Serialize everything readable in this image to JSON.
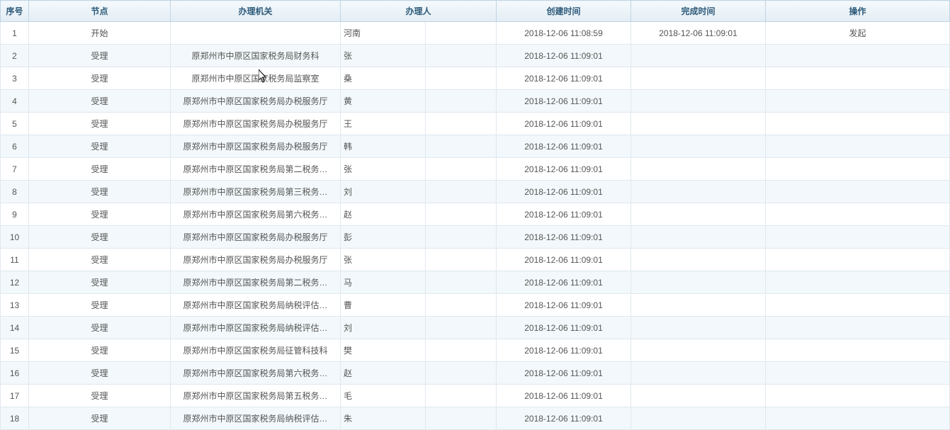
{
  "table": {
    "headers": {
      "seq": "序号",
      "node": "节点",
      "agency": "办理机关",
      "handler": "办理人",
      "created": "创建时间",
      "completed": "完成时间",
      "action": "操作"
    },
    "rows": [
      {
        "seq": "1",
        "node": "开始",
        "agency": "",
        "handler": "河南",
        "created": "2018-12-06 11:08:59",
        "completed": "2018-12-06 11:09:01",
        "action": "发起"
      },
      {
        "seq": "2",
        "node": "受理",
        "agency": "原郑州市中原区国家税务局财务科",
        "handler": "张",
        "created": "2018-12-06 11:09:01",
        "completed": "",
        "action": ""
      },
      {
        "seq": "3",
        "node": "受理",
        "agency": "原郑州市中原区国家税务局监察室",
        "handler": "桑",
        "created": "2018-12-06 11:09:01",
        "completed": "",
        "action": ""
      },
      {
        "seq": "4",
        "node": "受理",
        "agency": "原郑州市中原区国家税务局办税服务厅",
        "handler": "黄",
        "created": "2018-12-06 11:09:01",
        "completed": "",
        "action": ""
      },
      {
        "seq": "5",
        "node": "受理",
        "agency": "原郑州市中原区国家税务局办税服务厅",
        "handler": "王",
        "created": "2018-12-06 11:09:01",
        "completed": "",
        "action": ""
      },
      {
        "seq": "6",
        "node": "受理",
        "agency": "原郑州市中原区国家税务局办税服务厅",
        "handler": "韩",
        "created": "2018-12-06 11:09:01",
        "completed": "",
        "action": ""
      },
      {
        "seq": "7",
        "node": "受理",
        "agency": "原郑州市中原区国家税务局第二税务…",
        "handler": "张",
        "created": "2018-12-06 11:09:01",
        "completed": "",
        "action": ""
      },
      {
        "seq": "8",
        "node": "受理",
        "agency": "原郑州市中原区国家税务局第三税务…",
        "handler": "刘",
        "created": "2018-12-06 11:09:01",
        "completed": "",
        "action": ""
      },
      {
        "seq": "9",
        "node": "受理",
        "agency": "原郑州市中原区国家税务局第六税务…",
        "handler": "赵",
        "created": "2018-12-06 11:09:01",
        "completed": "",
        "action": ""
      },
      {
        "seq": "10",
        "node": "受理",
        "agency": "原郑州市中原区国家税务局办税服务厅",
        "handler": "彭",
        "created": "2018-12-06 11:09:01",
        "completed": "",
        "action": ""
      },
      {
        "seq": "11",
        "node": "受理",
        "agency": "原郑州市中原区国家税务局办税服务厅",
        "handler": "张",
        "created": "2018-12-06 11:09:01",
        "completed": "",
        "action": ""
      },
      {
        "seq": "12",
        "node": "受理",
        "agency": "原郑州市中原区国家税务局第二税务…",
        "handler": "马",
        "created": "2018-12-06 11:09:01",
        "completed": "",
        "action": ""
      },
      {
        "seq": "13",
        "node": "受理",
        "agency": "原郑州市中原区国家税务局纳税评估…",
        "handler": "曹",
        "created": "2018-12-06 11:09:01",
        "completed": "",
        "action": ""
      },
      {
        "seq": "14",
        "node": "受理",
        "agency": "原郑州市中原区国家税务局纳税评估…",
        "handler": "刘",
        "created": "2018-12-06 11:09:01",
        "completed": "",
        "action": ""
      },
      {
        "seq": "15",
        "node": "受理",
        "agency": "原郑州市中原区国家税务局征管科技科",
        "handler": "樊",
        "created": "2018-12-06 11:09:01",
        "completed": "",
        "action": ""
      },
      {
        "seq": "16",
        "node": "受理",
        "agency": "原郑州市中原区国家税务局第六税务…",
        "handler": "赵",
        "created": "2018-12-06 11:09:01",
        "completed": "",
        "action": ""
      },
      {
        "seq": "17",
        "node": "受理",
        "agency": "原郑州市中原区国家税务局第五税务…",
        "handler": "毛",
        "created": "2018-12-06 11:09:01",
        "completed": "",
        "action": ""
      },
      {
        "seq": "18",
        "node": "受理",
        "agency": "原郑州市中原区国家税务局纳税评估…",
        "handler": "朱",
        "created": "2018-12-06 11:09:01",
        "completed": "",
        "action": ""
      }
    ]
  },
  "colors": {
    "header_gradient_top": "#f4f9fc",
    "header_gradient_bottom": "#e3edf4",
    "header_text": "#2d5a7a",
    "header_border": "#c0d4e3",
    "cell_border": "#e0e8ef",
    "row_even_bg": "#f2f8fb",
    "row_odd_bg": "#ffffff",
    "cell_text": "#555555"
  }
}
